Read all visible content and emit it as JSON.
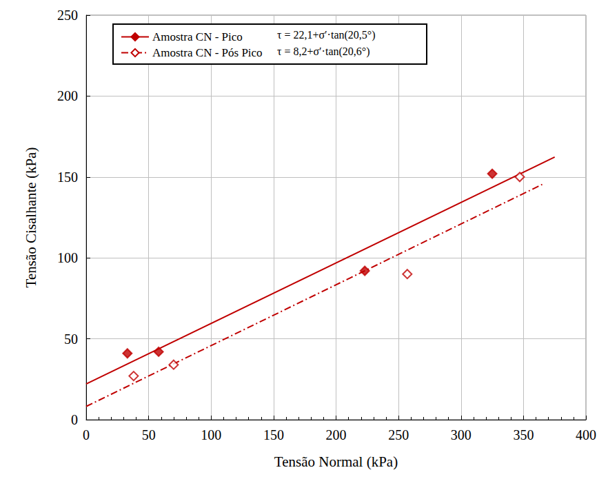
{
  "chart_data": {
    "type": "scatter",
    "x_label": "Tensão Normal (kPa)",
    "y_label": "Tensão Cisalhante (kPa)",
    "xlim": [
      0,
      400
    ],
    "ylim": [
      0,
      250
    ],
    "xticks": [
      0,
      50,
      100,
      150,
      200,
      250,
      300,
      350,
      400
    ],
    "yticks": [
      0,
      50,
      100,
      150,
      200,
      250
    ],
    "grid": true,
    "legend": "upper left",
    "annotations": [
      "τ = 22,1+σ′·tan(20,5°)",
      "τ = 8,2+σ′·tan(20,6°)"
    ],
    "series": [
      {
        "name": "Amostra CN - Pico",
        "color": "#c00000",
        "marker": "diamond",
        "line_style": "solid",
        "x": [
          33,
          58,
          223,
          325
        ],
        "values": [
          41,
          42,
          92,
          152
        ],
        "fit": {
          "x": [
            0,
            375
          ],
          "values": [
            22.1,
            162.3
          ]
        }
      },
      {
        "name": "Amostra CN - Pós Pico",
        "color": "#c00000",
        "marker": "diamond_open",
        "line_style": "dashdot",
        "x": [
          38,
          70,
          257,
          347
        ],
        "values": [
          27,
          34,
          90,
          150
        ],
        "fit": {
          "x": [
            0,
            365
          ],
          "values": [
            8.2,
            145.4
          ]
        }
      }
    ]
  }
}
